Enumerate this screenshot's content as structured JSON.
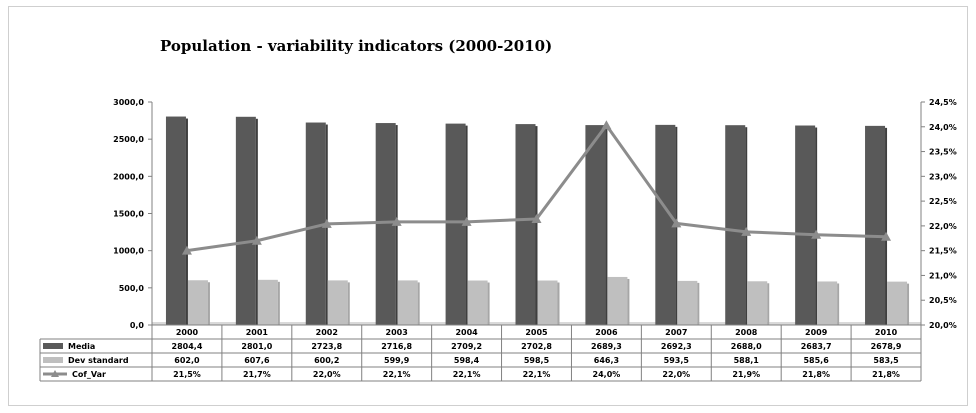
{
  "chart_data": {
    "type": "bar",
    "title": "Population - variability indicators (2000-2010)",
    "categories": [
      "2000",
      "2001",
      "2002",
      "2003",
      "2004",
      "2005",
      "2006",
      "2007",
      "2008",
      "2009",
      "2010"
    ],
    "series": [
      {
        "name": "Media",
        "kind": "bar",
        "axis": "left",
        "color": "#595959",
        "values": [
          2804.4,
          2801.0,
          2723.8,
          2716.8,
          2709.2,
          2702.8,
          2689.3,
          2692.3,
          2688.0,
          2683.7,
          2678.9
        ],
        "labels": [
          "2804,4",
          "2801,0",
          "2723,8",
          "2716,8",
          "2709,2",
          "2702,8",
          "2689,3",
          "2692,3",
          "2688,0",
          "2683,7",
          "2678,9"
        ]
      },
      {
        "name": "Dev standard",
        "kind": "bar",
        "axis": "left",
        "color": "#bfbfbf",
        "values": [
          602.0,
          607.6,
          600.2,
          599.9,
          598.4,
          598.5,
          646.3,
          593.5,
          588.1,
          585.6,
          583.5
        ],
        "labels": [
          "602,0",
          "607,6",
          "600,2",
          "599,9",
          "598,4",
          "598,5",
          "646,3",
          "593,5",
          "588,1",
          "585,6",
          "583,5"
        ]
      },
      {
        "name": "Cof_Var",
        "kind": "line",
        "axis": "right",
        "color": "#8c8c8c",
        "values": [
          21.5,
          21.7,
          22.04,
          22.08,
          22.08,
          22.14,
          24.03,
          22.05,
          21.88,
          21.82,
          21.78
        ],
        "labels": [
          "21,5%",
          "21,7%",
          "22,0%",
          "22,1%",
          "22,1%",
          "22,1%",
          "24,0%",
          "22,0%",
          "21,9%",
          "21,8%",
          "21,8%"
        ]
      }
    ],
    "y_left": {
      "lim": [
        0,
        3000
      ],
      "step": 500,
      "ticks": [
        "0,0",
        "500,0",
        "1000,0",
        "1500,0",
        "2000,0",
        "2500,0",
        "3000,0"
      ]
    },
    "y_right": {
      "lim": [
        20.0,
        24.5
      ],
      "step": 0.5,
      "ticks": [
        "20,0%",
        "20,5%",
        "21,0%",
        "21,5%",
        "22,0%",
        "22,5%",
        "23,0%",
        "23,5%",
        "24,0%",
        "24,5%"
      ]
    },
    "grid": false,
    "legend": "data-table-below"
  }
}
